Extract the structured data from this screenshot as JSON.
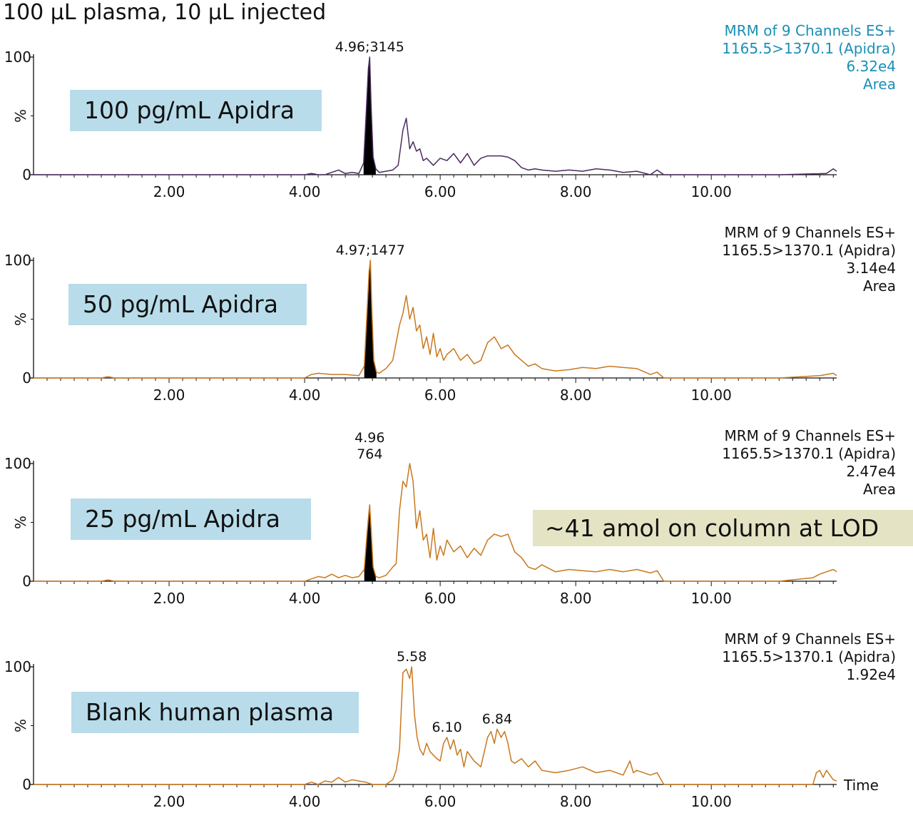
{
  "page": {
    "title": "100 µL plasma, 10 µL injected"
  },
  "annotation": {
    "lod_note": "~41 amol on column at LOD"
  },
  "chart_data": [
    {
      "type": "line",
      "sample_label": "100 pg/mL Apidra",
      "info_lines": [
        "MRM of 9 Channels ES+",
        "1165.5>1370.1 (Apidra)",
        "6.32e4",
        "Area"
      ],
      "info_color": "#1a8fb5",
      "line_color": "#4a2a5e",
      "ylabel": "%",
      "yticks": [
        "0",
        "100"
      ],
      "xticks": [
        "2.00",
        "4.00",
        "6.00",
        "8.00",
        "10.00"
      ],
      "xlim": [
        0,
        11.85
      ],
      "ylim": [
        0,
        100
      ],
      "peak_labels": [
        {
          "text": "4.96;3145",
          "x": 4.96,
          "y": 100
        }
      ],
      "shaded_peak": {
        "x0": 4.86,
        "x1": 5.07
      },
      "series": [
        {
          "x": [
            0.0,
            4.0,
            4.1,
            4.2,
            4.3,
            4.4,
            4.5,
            4.6,
            4.7,
            4.8,
            4.87,
            4.91,
            4.94,
            4.96,
            4.98,
            5.01,
            5.05,
            5.1,
            5.2,
            5.3,
            5.38,
            5.45,
            5.5,
            5.55,
            5.6,
            5.65,
            5.7,
            5.75,
            5.8,
            5.9,
            6.0,
            6.1,
            6.2,
            6.3,
            6.4,
            6.5,
            6.6,
            6.7,
            6.8,
            6.9,
            7.0,
            7.1,
            7.2,
            7.3,
            7.4,
            7.5,
            7.7,
            7.9,
            8.1,
            8.3,
            8.5,
            8.7,
            8.9,
            9.1,
            9.2,
            9.3,
            9.5,
            10.0,
            11.0,
            11.7,
            11.8,
            11.85
          ],
          "y": [
            0,
            0,
            1,
            0,
            0,
            2,
            4,
            1,
            2,
            1,
            10,
            55,
            90,
            100,
            60,
            15,
            5,
            2,
            3,
            4,
            8,
            38,
            48,
            22,
            28,
            20,
            22,
            12,
            14,
            8,
            14,
            12,
            18,
            10,
            18,
            8,
            14,
            16,
            16,
            16,
            15,
            12,
            6,
            4,
            5,
            4,
            3,
            4,
            3,
            5,
            4,
            2,
            3,
            0,
            4,
            0,
            0,
            0,
            0,
            1,
            5,
            3
          ]
        }
      ]
    },
    {
      "type": "line",
      "sample_label": "50 pg/mL Apidra",
      "info_lines": [
        "MRM of 9 Channels ES+",
        "1165.5>1370.1 (Apidra)",
        "3.14e4",
        "Area"
      ],
      "info_color": "#111111",
      "line_color": "#c8781e",
      "ylabel": "%",
      "yticks": [
        "0",
        "100"
      ],
      "xticks": [
        "2.00",
        "4.00",
        "6.00",
        "8.00",
        "10.00"
      ],
      "xlim": [
        0,
        11.85
      ],
      "ylim": [
        0,
        100
      ],
      "peak_labels": [
        {
          "text": "4.97;1477",
          "x": 4.97,
          "y": 100
        }
      ],
      "shaded_peak": {
        "x0": 4.87,
        "x1": 5.08
      },
      "series": [
        {
          "x": [
            0.0,
            1.0,
            1.1,
            1.2,
            4.0,
            4.1,
            4.2,
            4.4,
            4.6,
            4.8,
            4.88,
            4.92,
            4.95,
            4.97,
            4.99,
            5.02,
            5.06,
            5.1,
            5.2,
            5.3,
            5.4,
            5.45,
            5.5,
            5.55,
            5.6,
            5.65,
            5.7,
            5.75,
            5.8,
            5.85,
            5.9,
            5.95,
            6.0,
            6.05,
            6.1,
            6.2,
            6.3,
            6.4,
            6.5,
            6.6,
            6.7,
            6.8,
            6.9,
            7.0,
            7.1,
            7.2,
            7.3,
            7.4,
            7.5,
            7.7,
            7.9,
            8.1,
            8.3,
            8.5,
            8.7,
            8.9,
            9.1,
            9.2,
            9.3,
            9.5,
            10.0,
            11.0,
            11.6,
            11.7,
            11.8,
            11.85
          ],
          "y": [
            0,
            0,
            1,
            0,
            0,
            3,
            4,
            3,
            3,
            2,
            10,
            55,
            90,
            100,
            60,
            15,
            5,
            4,
            8,
            15,
            45,
            55,
            70,
            50,
            60,
            40,
            45,
            25,
            35,
            20,
            38,
            18,
            25,
            15,
            20,
            25,
            15,
            20,
            12,
            15,
            30,
            35,
            25,
            28,
            20,
            15,
            10,
            12,
            8,
            6,
            7,
            9,
            8,
            10,
            9,
            8,
            3,
            5,
            0,
            0,
            0,
            0,
            2,
            3,
            4,
            2
          ]
        }
      ]
    },
    {
      "type": "line",
      "sample_label": "25 pg/mL Apidra",
      "info_lines": [
        "MRM of 9 Channels ES+",
        "1165.5>1370.1 (Apidra)",
        "2.47e4",
        "Area"
      ],
      "info_color": "#111111",
      "line_color": "#c8781e",
      "ylabel": "%",
      "yticks": [
        "0",
        "100"
      ],
      "xticks": [
        "2.00",
        "4.00",
        "6.00",
        "8.00",
        "10.00"
      ],
      "xlim": [
        0,
        11.85
      ],
      "ylim": [
        0,
        100
      ],
      "peak_labels": [
        {
          "text": "4.96",
          "x": 4.96,
          "y": 100,
          "line": 1
        },
        {
          "text": "764",
          "x": 4.96,
          "y": 100,
          "line": 2
        }
      ],
      "shaded_peak": {
        "x0": 4.87,
        "x1": 5.07
      },
      "series": [
        {
          "x": [
            0.0,
            1.0,
            1.1,
            1.2,
            4.0,
            4.1,
            4.2,
            4.3,
            4.4,
            4.5,
            4.6,
            4.7,
            4.8,
            4.88,
            4.92,
            4.95,
            4.96,
            4.98,
            5.01,
            5.05,
            5.1,
            5.2,
            5.3,
            5.35,
            5.4,
            5.45,
            5.5,
            5.55,
            5.6,
            5.65,
            5.7,
            5.75,
            5.8,
            5.85,
            5.9,
            5.95,
            6.0,
            6.05,
            6.1,
            6.2,
            6.3,
            6.4,
            6.5,
            6.6,
            6.7,
            6.8,
            6.9,
            7.0,
            7.1,
            7.2,
            7.3,
            7.4,
            7.5,
            7.7,
            7.9,
            8.1,
            8.3,
            8.5,
            8.7,
            8.9,
            9.1,
            9.2,
            9.3,
            9.5,
            10.0,
            11.0,
            11.5,
            11.6,
            11.7,
            11.8,
            11.85
          ],
          "y": [
            0,
            0,
            1,
            0,
            0,
            2,
            4,
            3,
            6,
            3,
            5,
            3,
            4,
            10,
            40,
            60,
            65,
            45,
            12,
            4,
            3,
            5,
            12,
            15,
            60,
            85,
            80,
            100,
            85,
            45,
            60,
            35,
            40,
            20,
            45,
            18,
            30,
            22,
            35,
            25,
            30,
            20,
            28,
            22,
            35,
            40,
            38,
            40,
            25,
            20,
            12,
            10,
            14,
            8,
            10,
            9,
            8,
            10,
            8,
            10,
            7,
            9,
            0,
            0,
            0,
            0,
            3,
            6,
            8,
            10,
            8
          ]
        }
      ]
    },
    {
      "type": "line",
      "sample_label": "Blank human plasma",
      "info_lines": [
        "MRM of 9 Channels ES+",
        "1165.5>1370.1 (Apidra)",
        "1.92e4"
      ],
      "info_color": "#111111",
      "line_color": "#c8781e",
      "ylabel": "%",
      "yticks": [
        "0",
        "100"
      ],
      "xticks": [
        "2.00",
        "4.00",
        "6.00",
        "8.00",
        "10.00"
      ],
      "xlabel": "Time",
      "xlim": [
        0,
        11.85
      ],
      "ylim": [
        0,
        100
      ],
      "peak_labels": [
        {
          "text": "5.58",
          "x": 5.58,
          "y": 100
        },
        {
          "text": "6.10",
          "x": 6.1,
          "y": 40
        },
        {
          "text": "6.84",
          "x": 6.84,
          "y": 47
        }
      ],
      "shaded_peak": null,
      "series": [
        {
          "x": [
            0.0,
            4.0,
            4.1,
            4.2,
            4.3,
            4.4,
            4.5,
            4.6,
            4.7,
            4.8,
            4.9,
            5.0,
            5.1,
            5.2,
            5.3,
            5.35,
            5.4,
            5.45,
            5.5,
            5.55,
            5.58,
            5.62,
            5.66,
            5.7,
            5.75,
            5.8,
            5.85,
            5.9,
            5.95,
            6.0,
            6.05,
            6.1,
            6.15,
            6.2,
            6.25,
            6.3,
            6.35,
            6.4,
            6.5,
            6.6,
            6.7,
            6.75,
            6.8,
            6.84,
            6.9,
            6.95,
            7.0,
            7.05,
            7.1,
            7.2,
            7.3,
            7.4,
            7.5,
            7.7,
            7.9,
            8.1,
            8.3,
            8.5,
            8.7,
            8.8,
            8.85,
            8.9,
            9.1,
            9.2,
            9.3,
            9.5,
            10.0,
            11.0,
            11.5,
            11.55,
            11.6,
            11.65,
            11.7,
            11.8,
            11.85
          ],
          "y": [
            0,
            0,
            2,
            0,
            3,
            2,
            6,
            2,
            4,
            3,
            2,
            0,
            0,
            0,
            4,
            12,
            30,
            95,
            98,
            90,
            100,
            60,
            40,
            30,
            25,
            35,
            28,
            25,
            22,
            20,
            35,
            40,
            30,
            38,
            25,
            30,
            15,
            28,
            20,
            15,
            40,
            45,
            35,
            47,
            40,
            45,
            35,
            20,
            18,
            22,
            15,
            20,
            12,
            10,
            12,
            15,
            10,
            12,
            8,
            20,
            10,
            12,
            8,
            10,
            0,
            0,
            0,
            0,
            0,
            10,
            12,
            6,
            12,
            4,
            3
          ]
        }
      ]
    }
  ]
}
